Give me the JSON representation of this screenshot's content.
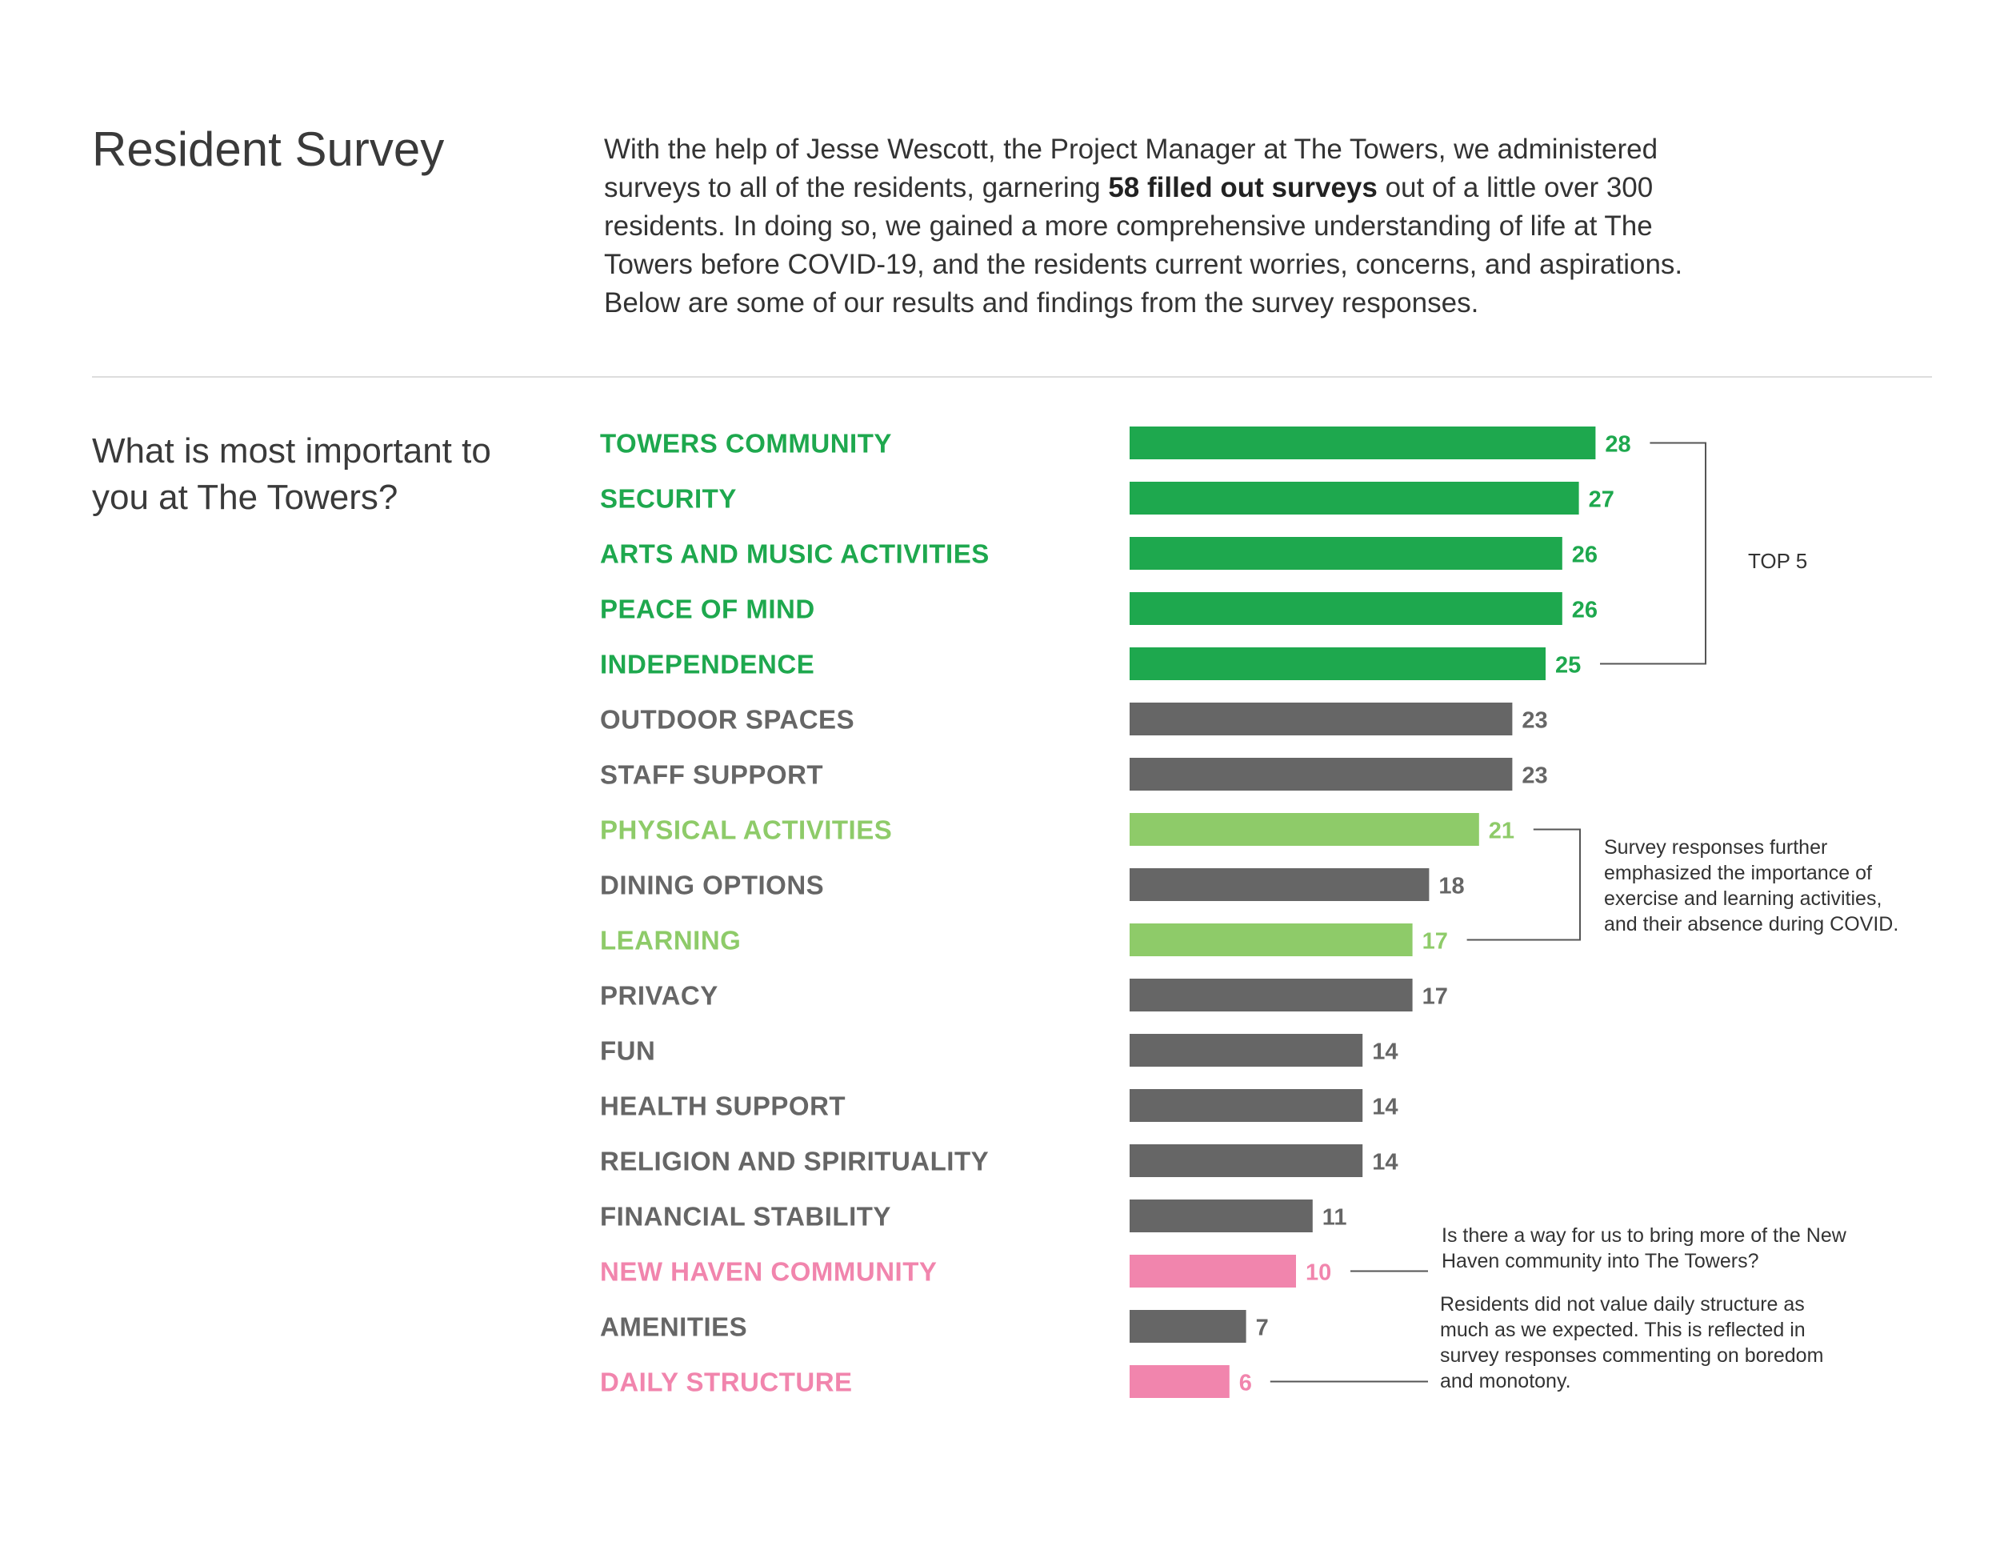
{
  "header": {
    "title": "Resident Survey",
    "intro_before": "With the help of Jesse Wescott, the Project Manager at The Towers, we administered surveys to all of the residents, garnering ",
    "intro_bold": "58 filled out surveys",
    "intro_after": " out of a little over 300 residents. In doing so, we gained a more comprehensive understanding of life at The Towers before COVID-19, and the residents current worries, concerns, and aspirations. Below are some of our results and findings from the survey responses."
  },
  "question": "What is most important to you at The Towers?",
  "colors": {
    "top": "#1ea84e",
    "neutral": "#666666",
    "highlight_green": "#8ecb69",
    "highlight_pink": "#f185ad",
    "label_neutral": "#666666",
    "bracket": "#555555"
  },
  "annotations": {
    "top5": "TOP 5",
    "activities_note": "Survey responses further emphasized the importance of exercise and learning activities, and their absence during COVID.",
    "community_note": "Is there a way for us to bring more of the New Haven community into The Towers?",
    "structure_note": "Residents did not value daily structure as much as we expected. This is reflected in survey responses commenting on boredom and monotony."
  },
  "chart_data": {
    "type": "bar",
    "orientation": "horizontal",
    "title": "What is most important to you at The Towers?",
    "categories": [
      "TOWERS COMMUNITY",
      "SECURITY",
      "ARTS AND MUSIC ACTIVITIES",
      "PEACE OF MIND",
      "INDEPENDENCE",
      "OUTDOOR SPACES",
      "STAFF SUPPORT",
      "PHYSICAL ACTIVITIES",
      "DINING OPTIONS",
      "LEARNING",
      "PRIVACY",
      "FUN",
      "HEALTH SUPPORT",
      "RELIGION AND SPIRITUALITY",
      "FINANCIAL STABILITY",
      "NEW HAVEN COMMUNITY",
      "AMENITIES",
      "DAILY STRUCTURE"
    ],
    "values": [
      28,
      27,
      26,
      26,
      25,
      23,
      23,
      21,
      18,
      17,
      17,
      14,
      14,
      14,
      11,
      10,
      7,
      6
    ],
    "groups": [
      "top",
      "top",
      "top",
      "top",
      "top",
      "neutral",
      "neutral",
      "highlight_green",
      "neutral",
      "highlight_green",
      "neutral",
      "neutral",
      "neutral",
      "neutral",
      "neutral",
      "highlight_pink",
      "neutral",
      "highlight_pink"
    ],
    "xlabel": "",
    "ylabel": "",
    "grid": false,
    "legend": "none"
  }
}
